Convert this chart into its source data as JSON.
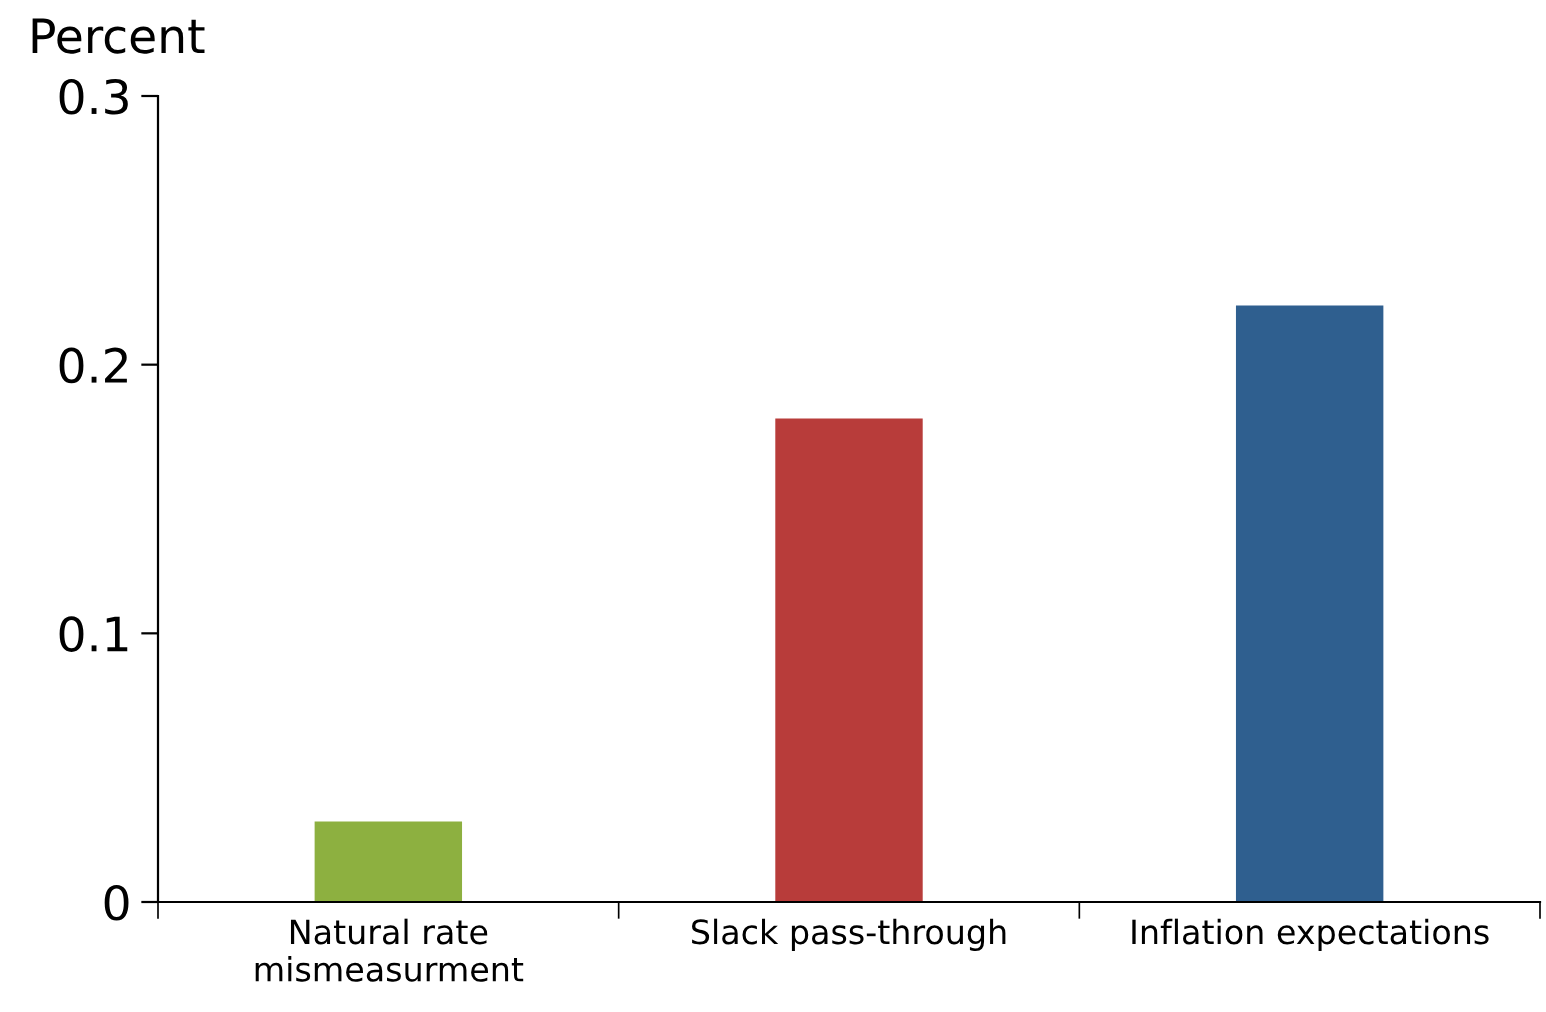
{
  "chart_data": {
    "type": "bar",
    "ylabel": "Percent",
    "categories": [
      "Natural rate\nmismeasurment",
      "Slack pass-through",
      "Inflation expectations"
    ],
    "values": [
      0.03,
      0.18,
      0.222
    ],
    "colors": [
      "#8db040",
      "#b83c3a",
      "#2f5f8f"
    ],
    "ylim": [
      0,
      0.3
    ],
    "yticks": [
      {
        "value": 0,
        "label": "0"
      },
      0.1,
      0.2,
      0.3
    ],
    "grid": false
  }
}
